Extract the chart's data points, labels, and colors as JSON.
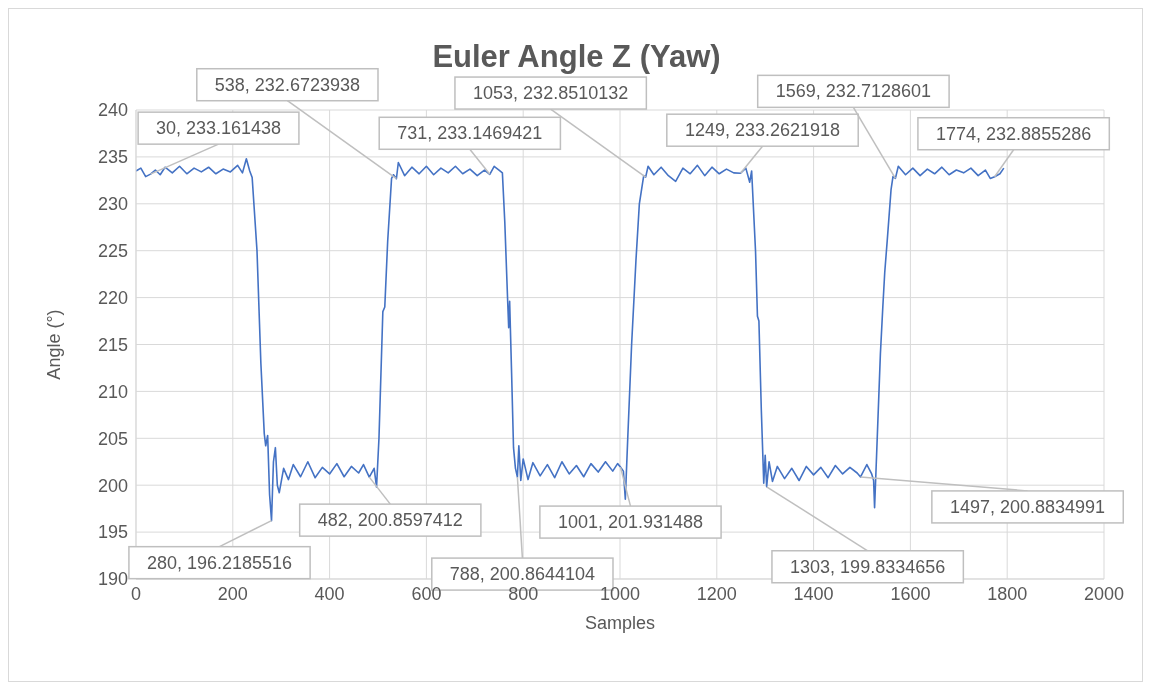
{
  "chart_data": {
    "type": "line",
    "title": "Euler Angle Z (Yaw)",
    "xlabel": "Samples",
    "ylabel": "Angle (°)",
    "xlim": [
      0,
      2000
    ],
    "xticks": [
      0,
      200,
      400,
      600,
      800,
      1000,
      1200,
      1400,
      1600,
      1800,
      2000
    ],
    "ylim": [
      190,
      240
    ],
    "yticks": [
      190,
      195,
      200,
      205,
      210,
      215,
      220,
      225,
      230,
      235,
      240
    ],
    "grid": true,
    "legend": false,
    "x": [
      0,
      10,
      20,
      30,
      40,
      50,
      60,
      75,
      90,
      105,
      120,
      135,
      150,
      165,
      180,
      195,
      210,
      220,
      228,
      235,
      240,
      250,
      258,
      265,
      268,
      272,
      276,
      280,
      284,
      288,
      292,
      296,
      305,
      315,
      325,
      340,
      355,
      370,
      385,
      400,
      415,
      430,
      445,
      460,
      470,
      482,
      492,
      497,
      502,
      510,
      514,
      520,
      528,
      532,
      538,
      542,
      555,
      570,
      585,
      600,
      615,
      630,
      645,
      660,
      675,
      690,
      705,
      720,
      731,
      740,
      750,
      757,
      762,
      768,
      770,
      772,
      776,
      780,
      784,
      788,
      791,
      795,
      800,
      810,
      820,
      835,
      850,
      865,
      880,
      895,
      910,
      925,
      940,
      955,
      970,
      985,
      995,
      1001,
      1007,
      1011,
      1016,
      1024,
      1028,
      1033,
      1040,
      1049,
      1053,
      1058,
      1070,
      1085,
      1100,
      1115,
      1130,
      1145,
      1160,
      1175,
      1190,
      1205,
      1220,
      1235,
      1249,
      1260,
      1268,
      1272,
      1280,
      1284,
      1287,
      1292,
      1297,
      1300,
      1303,
      1308,
      1315,
      1325,
      1340,
      1355,
      1370,
      1385,
      1400,
      1415,
      1430,
      1445,
      1460,
      1475,
      1490,
      1497,
      1510,
      1520,
      1524,
      1526,
      1530,
      1538,
      1543,
      1547,
      1552,
      1560,
      1564,
      1569,
      1575,
      1590,
      1605,
      1620,
      1635,
      1650,
      1665,
      1680,
      1695,
      1710,
      1725,
      1740,
      1755,
      1765,
      1774,
      1785,
      1793
    ],
    "series": [
      {
        "color": "#4472c4",
        "values": [
          233.5,
          233.8,
          232.9,
          233.161438,
          233.6,
          233.1,
          233.9,
          233.3,
          234.0,
          233.2,
          233.8,
          233.4,
          233.9,
          233.2,
          233.7,
          233.4,
          234.1,
          233.3,
          234.8,
          233.5,
          232.8,
          225,
          213,
          205.5,
          204.2,
          205.3,
          199,
          196.2185516,
          202.5,
          204,
          200,
          199.2,
          201.8,
          200.6,
          202.2,
          200.9,
          202.5,
          200.8,
          201.9,
          201.2,
          202.3,
          200.9,
          202.0,
          201.3,
          202.2,
          200.8597412,
          201.8,
          199.8,
          205,
          218.5,
          219,
          226,
          232.7,
          233.1,
          232.6723938,
          234.4,
          233.0,
          233.9,
          233.2,
          234.0,
          233.1,
          233.8,
          233.3,
          234.0,
          233.2,
          233.7,
          233.0,
          233.6,
          233.1469421,
          234.0,
          233.6,
          233.3,
          228,
          219.5,
          216.8,
          219.6,
          212,
          204,
          201.8,
          200.8644104,
          204.2,
          200.5,
          202.8,
          200.6,
          202.4,
          201.0,
          202.2,
          200.8,
          202.5,
          201.2,
          202.1,
          200.9,
          202.3,
          201.4,
          202.5,
          201.5,
          202.3,
          201.931488,
          201.5,
          198.5,
          205,
          215,
          219,
          224,
          230,
          233.0,
          232.8510132,
          234.0,
          233.1,
          233.9,
          233.0,
          232.4,
          233.8,
          233.2,
          234.1,
          233.0,
          233.9,
          233.2,
          233.7,
          233.3,
          233.2621918,
          233.8,
          232.3,
          233.5,
          225,
          218,
          217.5,
          208,
          200.2,
          203.2,
          199.8334656,
          202.5,
          200.4,
          202.0,
          200.7,
          201.8,
          200.5,
          202.0,
          201.1,
          201.9,
          200.8,
          202.1,
          201.2,
          201.9,
          201.3,
          200.8834991,
          202.2,
          201.2,
          200.5,
          197.6,
          203,
          214,
          219,
          222.7,
          226,
          231.5,
          232.9,
          232.7128601,
          234.0,
          233.1,
          233.8,
          233.0,
          233.7,
          233.2,
          233.9,
          233.1,
          233.6,
          233.3,
          233.8,
          233.0,
          233.6,
          232.7,
          232.8855286,
          233.2,
          233.8
        ]
      }
    ],
    "annotations": [
      {
        "text": "30, 233.161438",
        "x": 30,
        "y": 233.161438
      },
      {
        "text": "280, 196.2185516",
        "x": 280,
        "y": 196.2185516
      },
      {
        "text": "482, 200.8597412",
        "x": 482,
        "y": 200.8597412
      },
      {
        "text": "538, 232.6723938",
        "x": 538,
        "y": 232.6723938
      },
      {
        "text": "731, 233.1469421",
        "x": 731,
        "y": 233.1469421
      },
      {
        "text": "788, 200.8644104",
        "x": 788,
        "y": 200.8644104
      },
      {
        "text": "1001, 201.931488",
        "x": 1001,
        "y": 201.931488
      },
      {
        "text": "1053, 232.8510132",
        "x": 1053,
        "y": 232.8510132
      },
      {
        "text": "1249, 233.2621918",
        "x": 1249,
        "y": 233.2621918
      },
      {
        "text": "1303, 199.8334656",
        "x": 1303,
        "y": 199.8334656
      },
      {
        "text": "1497, 200.8834991",
        "x": 1497,
        "y": 200.8834991
      },
      {
        "text": "1569, 232.7128601",
        "x": 1569,
        "y": 232.7128601
      },
      {
        "text": "1774, 232.8855286",
        "x": 1774,
        "y": 232.8855286
      }
    ]
  }
}
